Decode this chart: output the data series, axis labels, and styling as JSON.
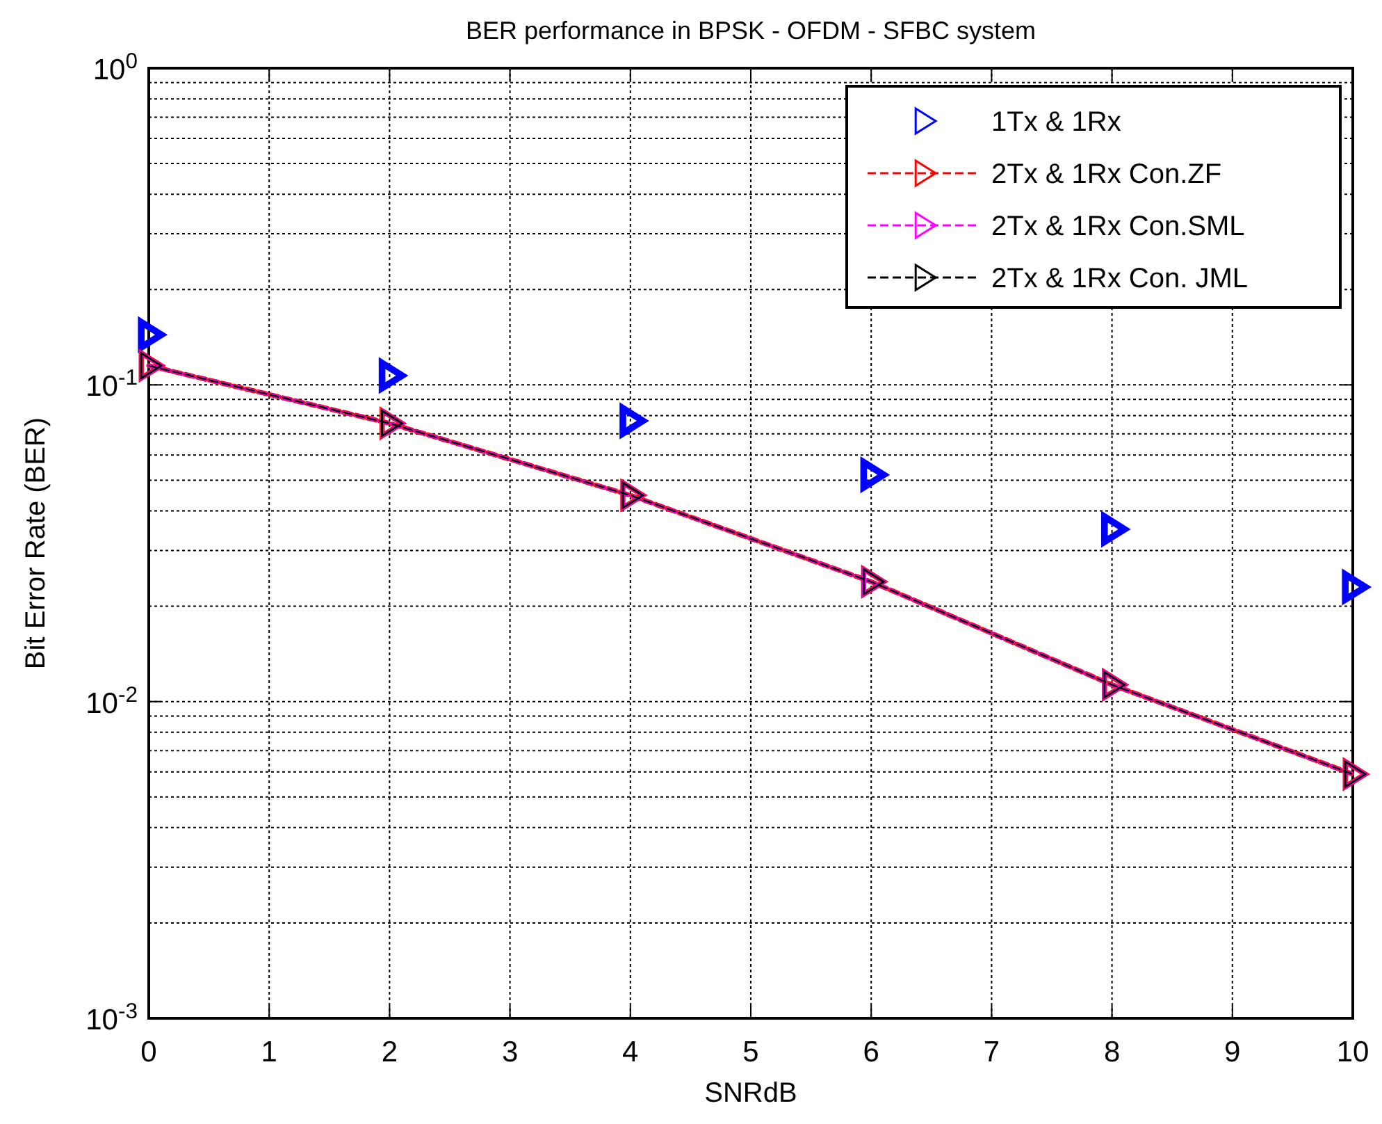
{
  "chart_data": {
    "type": "line",
    "title": "BER performance in BPSK - OFDM - SFBC system",
    "xlabel": "SNRdB",
    "ylabel": "Bit Error Rate (BER)",
    "x": [
      0,
      2,
      4,
      6,
      8,
      10
    ],
    "series": [
      {
        "name": "1Tx & 1Rx",
        "type": "scatter",
        "color": "#0000ff",
        "values": [
          0.144,
          0.107,
          0.077,
          0.052,
          0.035,
          0.023
        ]
      },
      {
        "name": "2Tx & 1Rx Con.ZF",
        "color": "#ff0000",
        "line_style": "dashed",
        "values": [
          0.115,
          0.0756,
          0.0448,
          0.0239,
          0.0113,
          0.0059
        ]
      },
      {
        "name": "2Tx & 1Rx Con.SML",
        "color": "#ff00ff",
        "line_style": "dashed",
        "values": [
          0.115,
          0.0756,
          0.0448,
          0.0239,
          0.0113,
          0.0059
        ]
      },
      {
        "name": "2Tx & 1Rx Con. JML",
        "color": "#000000",
        "line_style": "dashed",
        "values": [
          0.115,
          0.0756,
          0.0448,
          0.0239,
          0.0113,
          0.0059
        ]
      }
    ],
    "xlim": [
      0,
      10
    ],
    "xticks": [
      0,
      1,
      2,
      3,
      4,
      5,
      6,
      7,
      8,
      9,
      10
    ],
    "ylim": [
      0.001,
      1
    ],
    "yticks": [
      {
        "value": 0.001,
        "label": "10$^{-3}$"
      },
      {
        "value": 0.01,
        "label": "10$^{-2}$"
      },
      {
        "value": 0.1,
        "label": "10$^{-1}$"
      },
      {
        "value": 1,
        "label": "10$^{0}$"
      }
    ],
    "log": true,
    "grid": true,
    "legend": "top right",
    "marker": "triangle"
  }
}
